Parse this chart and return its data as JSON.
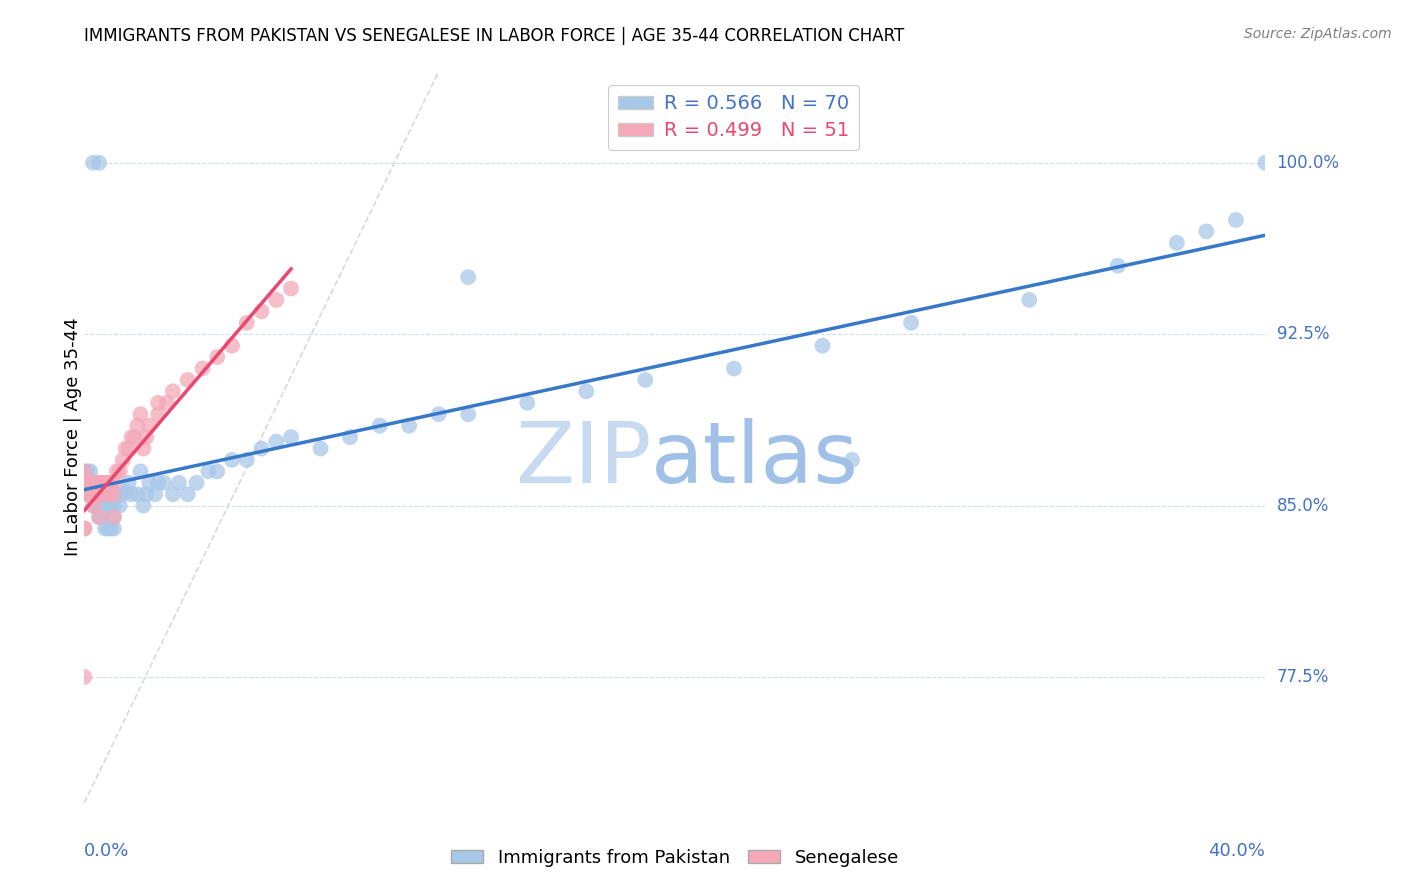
{
  "title": "IMMIGRANTS FROM PAKISTAN VS SENEGALESE IN LABOR FORCE | AGE 35-44 CORRELATION CHART",
  "source": "Source: ZipAtlas.com",
  "ylabel": "In Labor Force | Age 35-44",
  "yticks": [
    0.775,
    0.85,
    0.925,
    1.0
  ],
  "ytick_labels": [
    "77.5%",
    "85.0%",
    "92.5%",
    "100.0%"
  ],
  "xlim": [
    0.0,
    0.4
  ],
  "ylim": [
    0.72,
    1.04
  ],
  "legend_blue_r": "R = 0.566",
  "legend_blue_n": "N = 70",
  "legend_pink_r": "R = 0.499",
  "legend_pink_n": "N = 51",
  "blue_color": "#a8c8e8",
  "pink_color": "#f4a8b8",
  "blue_line_color": "#3878c8",
  "pink_line_color": "#e84870",
  "legend_r_blue": "#4472c4",
  "legend_r_pink": "#e84870",
  "watermark_zip_color": "#c8daf0",
  "watermark_atlas_color": "#a0c0e8",
  "ref_line_color": "#d0d0d0",
  "grid_color": "#d0dde8",
  "axis_label_color": "#4472c4",
  "pakistan_x": [
    0.001,
    0.001,
    0.001,
    0.002,
    0.002,
    0.002,
    0.003,
    0.003,
    0.004,
    0.004,
    0.005,
    0.005,
    0.006,
    0.006,
    0.007,
    0.007,
    0.008,
    0.008,
    0.009,
    0.009,
    0.01,
    0.01,
    0.01,
    0.011,
    0.012,
    0.013,
    0.014,
    0.015,
    0.016,
    0.018,
    0.019,
    0.02,
    0.021,
    0.022,
    0.024,
    0.025,
    0.027,
    0.03,
    0.032,
    0.035,
    0.038,
    0.042,
    0.045,
    0.05,
    0.055,
    0.06,
    0.065,
    0.07,
    0.08,
    0.09,
    0.1,
    0.11,
    0.12,
    0.13,
    0.15,
    0.17,
    0.19,
    0.22,
    0.25,
    0.28,
    0.32,
    0.35,
    0.37,
    0.38,
    0.39,
    0.4,
    0.13,
    0.26,
    0.003,
    0.005
  ],
  "pakistan_y": [
    0.855,
    0.86,
    0.865,
    0.855,
    0.86,
    0.865,
    0.85,
    0.855,
    0.85,
    0.86,
    0.845,
    0.855,
    0.845,
    0.855,
    0.84,
    0.85,
    0.84,
    0.85,
    0.84,
    0.85,
    0.84,
    0.845,
    0.85,
    0.855,
    0.85,
    0.855,
    0.856,
    0.86,
    0.855,
    0.855,
    0.865,
    0.85,
    0.855,
    0.86,
    0.855,
    0.86,
    0.86,
    0.855,
    0.86,
    0.855,
    0.86,
    0.865,
    0.865,
    0.87,
    0.87,
    0.875,
    0.878,
    0.88,
    0.875,
    0.88,
    0.885,
    0.885,
    0.89,
    0.89,
    0.895,
    0.9,
    0.905,
    0.91,
    0.92,
    0.93,
    0.94,
    0.955,
    0.965,
    0.97,
    0.975,
    1.0,
    0.95,
    0.87,
    1.0,
    1.0
  ],
  "senegal_x": [
    0.0,
    0.0,
    0.0,
    0.001,
    0.001,
    0.002,
    0.002,
    0.003,
    0.003,
    0.004,
    0.004,
    0.005,
    0.005,
    0.006,
    0.006,
    0.007,
    0.007,
    0.008,
    0.008,
    0.009,
    0.01,
    0.01,
    0.011,
    0.012,
    0.013,
    0.014,
    0.015,
    0.016,
    0.017,
    0.018,
    0.019,
    0.02,
    0.021,
    0.022,
    0.025,
    0.025,
    0.028,
    0.03,
    0.035,
    0.04,
    0.045,
    0.05,
    0.055,
    0.06,
    0.065,
    0.07,
    0.0,
    0.0,
    0.0,
    0.005,
    0.01
  ],
  "senegal_y": [
    0.855,
    0.86,
    0.865,
    0.855,
    0.86,
    0.855,
    0.86,
    0.85,
    0.855,
    0.855,
    0.86,
    0.855,
    0.86,
    0.855,
    0.86,
    0.855,
    0.86,
    0.855,
    0.86,
    0.86,
    0.855,
    0.86,
    0.865,
    0.865,
    0.87,
    0.875,
    0.875,
    0.88,
    0.88,
    0.885,
    0.89,
    0.875,
    0.88,
    0.885,
    0.89,
    0.895,
    0.895,
    0.9,
    0.905,
    0.91,
    0.915,
    0.92,
    0.93,
    0.935,
    0.94,
    0.945,
    0.84,
    0.84,
    0.775,
    0.845,
    0.845
  ]
}
